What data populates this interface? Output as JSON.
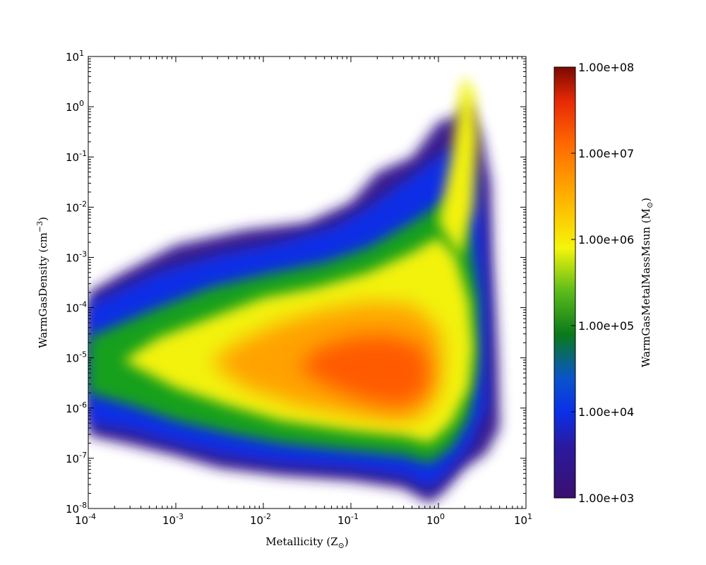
{
  "chart_data": {
    "type": "heatmap",
    "title": "",
    "xlabel": "Metallicity  (Z",
    "xlabel_sub": "⊙",
    "xlabel_close": ")",
    "ylabel": "WarmGasDensity  (cm",
    "ylabel_sup": "−3",
    "ylabel_close": ")",
    "x_scale": "log",
    "y_scale": "log",
    "xlim": [
      0.0001,
      10
    ],
    "ylim": [
      1e-08,
      10
    ],
    "x_ticks": [
      {
        "base": "10",
        "exp": "-4",
        "value": 0.0001
      },
      {
        "base": "10",
        "exp": "-3",
        "value": 0.001
      },
      {
        "base": "10",
        "exp": "-2",
        "value": 0.01
      },
      {
        "base": "10",
        "exp": "-1",
        "value": 0.1
      },
      {
        "base": "10",
        "exp": "0",
        "value": 1
      },
      {
        "base": "10",
        "exp": "1",
        "value": 10
      }
    ],
    "y_ticks": [
      {
        "base": "10",
        "exp": "-8",
        "value": 1e-08
      },
      {
        "base": "10",
        "exp": "-7",
        "value": 1e-07
      },
      {
        "base": "10",
        "exp": "-6",
        "value": 1e-06
      },
      {
        "base": "10",
        "exp": "-5",
        "value": 1e-05
      },
      {
        "base": "10",
        "exp": "-4",
        "value": 0.0001
      },
      {
        "base": "10",
        "exp": "-3",
        "value": 0.001
      },
      {
        "base": "10",
        "exp": "-2",
        "value": 0.01
      },
      {
        "base": "10",
        "exp": "-1",
        "value": 0.1
      },
      {
        "base": "10",
        "exp": "0",
        "value": 1
      },
      {
        "base": "10",
        "exp": "1",
        "value": 10
      }
    ],
    "colorbar": {
      "label": "WarmGasMetalMassMsun  (M",
      "label_sub": "⊙",
      "label_close": ")",
      "scale": "log",
      "range": [
        1000,
        100000000
      ],
      "tick_labels": [
        "1.00e+03",
        "1.00e+04",
        "1.00e+05",
        "1.00e+06",
        "1.00e+07",
        "1.00e+08"
      ],
      "tick_values": [
        1000,
        10000,
        100000,
        1000000,
        10000000,
        100000000
      ],
      "colors": [
        "#3b0f6f",
        "#1a1acf",
        "#0a3cf0",
        "#1a8a1a",
        "#7ed321",
        "#f5f50a",
        "#ffb000",
        "#ff6a00",
        "#d81e05",
        "#7a0a00"
      ]
    },
    "density_regions": [
      {
        "note": "low-density outer envelope",
        "log_z_range": [
          -4,
          0.7
        ],
        "log_n_range": [
          -7.6,
          1.0
        ],
        "log_mass": 3.3
      },
      {
        "note": "blue band",
        "log_z_range": [
          -4,
          0.6
        ],
        "log_n_range": [
          -7.2,
          -3.0
        ],
        "log_mass": 4.0
      },
      {
        "note": "green band",
        "log_z_range": [
          -3.8,
          0.4
        ],
        "log_n_range": [
          -6.8,
          -3.6
        ],
        "log_mass": 5.0
      },
      {
        "note": "yellow band",
        "log_z_range": [
          -3.0,
          0.3
        ],
        "log_n_range": [
          -6.3,
          -4.0
        ],
        "log_mass": 6.0
      },
      {
        "note": "orange/red core",
        "log_z_range": [
          -2.0,
          -0.2
        ],
        "log_n_range": [
          -6.0,
          -4.4
        ],
        "log_mass": 7.0
      }
    ]
  }
}
